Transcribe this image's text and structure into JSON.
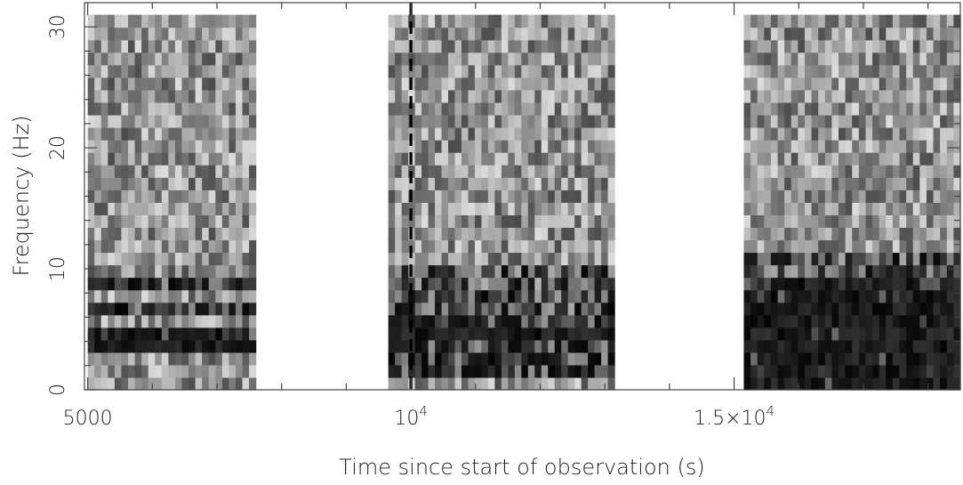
{
  "chart_data": {
    "type": "heatmap",
    "title": "",
    "xlabel": "Time since start of observation (s)",
    "ylabel": "Frequency (Hz)",
    "xlim": [
      4950,
      18500
    ],
    "ylim": [
      0,
      32
    ],
    "colormap": "grayscale (black = high power)",
    "grid": false,
    "x_ticks": [
      {
        "value": 5000,
        "label": "5000",
        "exp": ""
      },
      {
        "value": 10000,
        "label": "10",
        "exp": "4"
      },
      {
        "value": 15000,
        "label": "1.5×10",
        "exp": "4"
      }
    ],
    "y_ticks": [
      {
        "value": 0,
        "label": "0"
      },
      {
        "value": 10,
        "label": "10"
      },
      {
        "value": 20,
        "label": "20"
      },
      {
        "value": 30,
        "label": "30"
      }
    ],
    "segments": [
      {
        "name": "segment 1",
        "t_start": 5000,
        "t_end": 7600,
        "f_min": 0,
        "f_max": 31,
        "bands": [
          {
            "f_min": 3.5,
            "f_max": 4.5,
            "level": 0.92
          },
          {
            "f_min": 4.5,
            "f_max": 5.5,
            "level": 0.7
          },
          {
            "f_min": 6.5,
            "f_max": 7.5,
            "level": 0.62
          },
          {
            "f_min": 8.0,
            "f_max": 9.0,
            "level": 0.62
          }
        ]
      },
      {
        "name": "segment 2",
        "t_start": 9650,
        "t_end": 13150,
        "f_min": 0,
        "f_max": 31,
        "bands": [
          {
            "f_min": 4.5,
            "f_max": 5.5,
            "level": 0.92
          },
          {
            "f_min": 1.0,
            "f_max": 6.5,
            "level": 0.6
          },
          {
            "f_min": 6.5,
            "f_max": 8.5,
            "level": 0.5
          },
          {
            "f_min": 8.5,
            "f_max": 10.5,
            "level": 0.35
          }
        ]
      },
      {
        "name": "segment 3",
        "t_start": 15150,
        "t_end": 18500,
        "f_min": 0,
        "f_max": 31,
        "bands": [
          {
            "f_min": 0,
            "f_max": 7.5,
            "level": 0.95
          },
          {
            "f_min": 7.5,
            "f_max": 9.5,
            "level": 0.78
          },
          {
            "f_min": 9.5,
            "f_max": 11.5,
            "level": 0.45
          }
        ]
      }
    ],
    "markers": [
      {
        "type": "vertical-dashed-line",
        "x": 10000,
        "color": "#000000"
      }
    ]
  }
}
